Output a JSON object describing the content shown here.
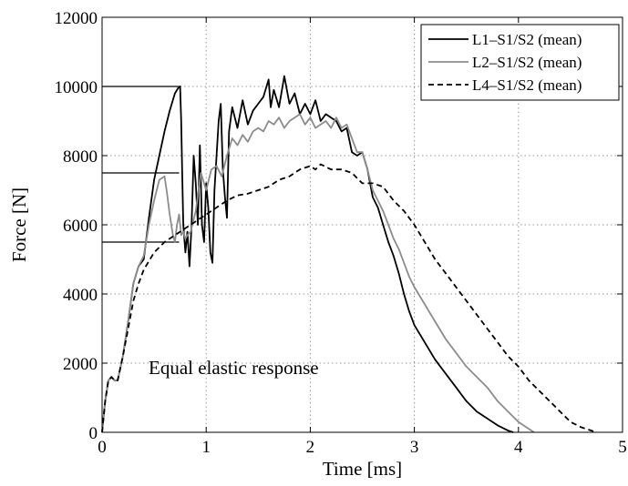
{
  "chart_data": {
    "type": "line",
    "xlabel": "Time [ms]",
    "ylabel": "Force [N]",
    "xlim": [
      0,
      5
    ],
    "ylim": [
      0,
      12000
    ],
    "xticks": [
      "0",
      "1",
      "2",
      "3",
      "4",
      "5"
    ],
    "yticks": [
      "0",
      "2000",
      "4000",
      "6000",
      "8000",
      "10000",
      "12000"
    ],
    "grid": true,
    "legend_position": "top-right",
    "annotation": "Equal elastic response",
    "reference_levels": [
      {
        "value": 10000,
        "x_end": 0.76
      },
      {
        "value": 7500,
        "x_end": 0.74
      },
      {
        "value": 5500,
        "x_end": 0.74
      }
    ],
    "series": [
      {
        "name": "L1–S1/S2 (mean)",
        "color": "#000000",
        "style": "solid",
        "x": [
          0,
          0.03,
          0.06,
          0.09,
          0.12,
          0.15,
          0.2,
          0.25,
          0.3,
          0.35,
          0.4,
          0.45,
          0.5,
          0.55,
          0.6,
          0.65,
          0.7,
          0.73,
          0.75,
          0.76,
          0.77,
          0.78,
          0.8,
          0.82,
          0.84,
          0.86,
          0.88,
          0.9,
          0.92,
          0.94,
          0.96,
          0.98,
          1.0,
          1.02,
          1.04,
          1.06,
          1.08,
          1.1,
          1.12,
          1.14,
          1.16,
          1.18,
          1.2,
          1.22,
          1.25,
          1.3,
          1.35,
          1.4,
          1.45,
          1.5,
          1.55,
          1.6,
          1.62,
          1.65,
          1.7,
          1.75,
          1.8,
          1.85,
          1.9,
          1.95,
          2.0,
          2.05,
          2.1,
          2.15,
          2.2,
          2.25,
          2.3,
          2.35,
          2.4,
          2.45,
          2.5,
          2.55,
          2.6,
          2.65,
          2.7,
          2.75,
          2.8,
          2.85,
          2.9,
          2.95,
          3.0,
          3.1,
          3.2,
          3.3,
          3.4,
          3.5,
          3.6,
          3.7,
          3.8,
          3.9,
          3.95
        ],
        "y": [
          0,
          900,
          1500,
          1600,
          1500,
          1500,
          2200,
          3200,
          4300,
          4800,
          5000,
          6200,
          7300,
          8000,
          8700,
          9300,
          9800,
          9950,
          10000,
          9000,
          7500,
          6000,
          5200,
          5800,
          4800,
          6000,
          8000,
          7200,
          6000,
          8300,
          6000,
          5500,
          7200,
          6500,
          5200,
          4900,
          7000,
          8000,
          9000,
          9500,
          7600,
          6800,
          6200,
          8700,
          9400,
          8800,
          9600,
          8900,
          9300,
          9500,
          9700,
          10200,
          9400,
          9900,
          9400,
          10300,
          9500,
          9800,
          9200,
          9500,
          9200,
          9600,
          9000,
          9200,
          9100,
          9000,
          8700,
          8800,
          8100,
          8000,
          8100,
          7600,
          6800,
          6500,
          6000,
          5500,
          5100,
          4600,
          4000,
          3500,
          3100,
          2600,
          2100,
          1700,
          1300,
          900,
          600,
          400,
          200,
          50,
          0
        ]
      },
      {
        "name": "L2–S1/S2 (mean)",
        "color": "#8c8c8c",
        "style": "solid",
        "x": [
          0,
          0.03,
          0.06,
          0.09,
          0.12,
          0.15,
          0.2,
          0.25,
          0.3,
          0.35,
          0.4,
          0.45,
          0.5,
          0.55,
          0.6,
          0.62,
          0.65,
          0.68,
          0.7,
          0.72,
          0.74,
          0.76,
          0.78,
          0.8,
          0.82,
          0.85,
          0.9,
          0.95,
          1.0,
          1.05,
          1.1,
          1.15,
          1.2,
          1.25,
          1.3,
          1.35,
          1.4,
          1.45,
          1.5,
          1.55,
          1.6,
          1.65,
          1.7,
          1.75,
          1.8,
          1.85,
          1.9,
          1.95,
          2.0,
          2.05,
          2.1,
          2.15,
          2.2,
          2.25,
          2.3,
          2.35,
          2.4,
          2.45,
          2.5,
          2.55,
          2.6,
          2.65,
          2.7,
          2.75,
          2.8,
          2.85,
          2.9,
          2.95,
          3.0,
          3.1,
          3.2,
          3.3,
          3.4,
          3.5,
          3.6,
          3.7,
          3.8,
          3.9,
          4.0,
          4.1,
          4.15
        ],
        "y": [
          0,
          900,
          1500,
          1600,
          1500,
          1500,
          2200,
          3200,
          4300,
          4800,
          5100,
          6000,
          6700,
          7300,
          7400,
          7000,
          6300,
          5700,
          5500,
          6000,
          6300,
          5700,
          5800,
          5600,
          5700,
          5800,
          6400,
          7500,
          7000,
          7600,
          7700,
          7400,
          8000,
          8500,
          8300,
          8600,
          8400,
          8700,
          8800,
          8700,
          9000,
          8900,
          9100,
          8800,
          9000,
          9100,
          9200,
          8900,
          9100,
          8800,
          8900,
          9000,
          8800,
          9100,
          8800,
          8900,
          8500,
          8100,
          8100,
          7600,
          7000,
          6700,
          6400,
          6000,
          5600,
          5300,
          4900,
          4500,
          4200,
          3700,
          3200,
          2700,
          2300,
          1900,
          1600,
          1300,
          900,
          600,
          300,
          100,
          0
        ]
      },
      {
        "name": "L4–S1/S2 (mean)",
        "color": "#000000",
        "style": "dashed",
        "x": [
          0,
          0.03,
          0.06,
          0.09,
          0.12,
          0.15,
          0.2,
          0.25,
          0.3,
          0.35,
          0.4,
          0.5,
          0.6,
          0.7,
          0.8,
          0.9,
          1.0,
          1.1,
          1.2,
          1.3,
          1.4,
          1.5,
          1.6,
          1.7,
          1.8,
          1.9,
          2.0,
          2.05,
          2.1,
          2.2,
          2.3,
          2.4,
          2.5,
          2.6,
          2.7,
          2.8,
          2.9,
          3.0,
          3.1,
          3.2,
          3.3,
          3.4,
          3.5,
          3.6,
          3.7,
          3.8,
          3.9,
          4.0,
          4.1,
          4.2,
          4.3,
          4.4,
          4.5,
          4.6,
          4.7,
          4.75
        ],
        "y": [
          0,
          900,
          1500,
          1600,
          1500,
          1500,
          2200,
          3000,
          3800,
          4300,
          4700,
          5200,
          5500,
          5700,
          5900,
          6100,
          6300,
          6500,
          6700,
          6850,
          6900,
          7000,
          7100,
          7300,
          7400,
          7600,
          7700,
          7600,
          7750,
          7600,
          7600,
          7500,
          7200,
          7200,
          7100,
          6700,
          6400,
          6000,
          5500,
          5000,
          4600,
          4200,
          3800,
          3400,
          3000,
          2600,
          2200,
          1900,
          1500,
          1200,
          900,
          600,
          300,
          150,
          50,
          0
        ]
      }
    ]
  }
}
